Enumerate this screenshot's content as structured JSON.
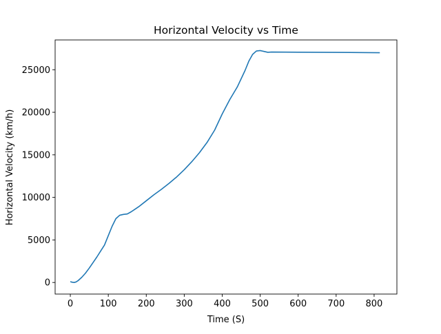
{
  "chart_data": {
    "type": "line",
    "title": "Horizontal Velocity vs Time",
    "xlabel": "Time (S)",
    "ylabel": "Horizontal Velocity (km/h)",
    "xlim": [
      -40,
      860
    ],
    "ylim": [
      -1360,
      28500
    ],
    "xticks": [
      0,
      100,
      200,
      300,
      400,
      500,
      600,
      700,
      800
    ],
    "yticks": [
      0,
      5000,
      10000,
      15000,
      20000,
      25000
    ],
    "grid": false,
    "line_color": "#1f77b4",
    "series": [
      {
        "x": [
          0,
          5,
          10,
          15,
          20,
          30,
          40,
          50,
          60,
          70,
          80,
          90,
          100,
          110,
          120,
          130,
          140,
          150,
          160,
          170,
          180,
          200,
          220,
          240,
          260,
          280,
          300,
          320,
          340,
          360,
          380,
          400,
          420,
          440,
          460,
          470,
          480,
          490,
          500,
          510,
          520,
          530,
          600,
          700,
          815
        ],
        "y": [
          100,
          30,
          0,
          60,
          200,
          600,
          1100,
          1700,
          2350,
          3000,
          3700,
          4400,
          5500,
          6600,
          7500,
          7900,
          8000,
          8050,
          8300,
          8600,
          8900,
          9600,
          10300,
          10950,
          11650,
          12400,
          13250,
          14200,
          15250,
          16450,
          17900,
          19800,
          21500,
          23000,
          24900,
          26000,
          26800,
          27200,
          27250,
          27150,
          27050,
          27080,
          27060,
          27040,
          27000
        ]
      }
    ]
  }
}
